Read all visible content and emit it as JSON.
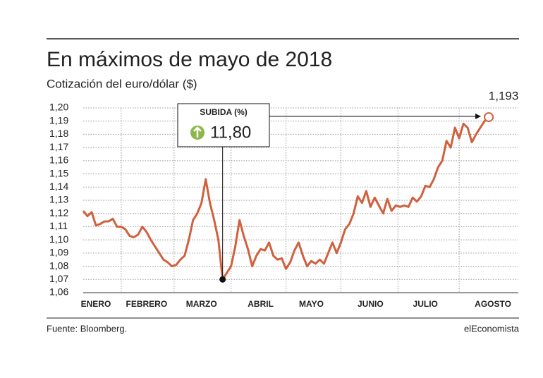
{
  "chart_data": {
    "type": "line",
    "title": "En máximos de mayo de 2018",
    "subtitle": "Cotización del euro/dólar ($)",
    "source": "Fuente: Bloomberg.",
    "brand": "elEconomista",
    "annotation": {
      "title": "SUBIDA (%)",
      "label": "11,80",
      "index": 33
    },
    "end_label": "1,193",
    "xlim": [
      0,
      103
    ],
    "xticks": [
      {
        "value": 3,
        "label": "ENERO"
      },
      {
        "value": 15,
        "label": "FEBRERO"
      },
      {
        "value": 28,
        "label": "MARZO"
      },
      {
        "value": 42,
        "label": "ABRIL"
      },
      {
        "value": 54,
        "label": "MAYO"
      },
      {
        "value": 68,
        "label": "JUNIO"
      },
      {
        "value": 81,
        "label": "JULIO"
      },
      {
        "value": 97,
        "label": "AGOSTO"
      }
    ],
    "ylim": [
      1.06,
      1.2
    ],
    "yticks": [
      {
        "value": 1.06,
        "label": "1,06"
      },
      {
        "value": 1.07,
        "label": "1,07"
      },
      {
        "value": 1.08,
        "label": "1,08"
      },
      {
        "value": 1.09,
        "label": "1,09"
      },
      {
        "value": 1.1,
        "label": "1,10"
      },
      {
        "value": 1.11,
        "label": "1,11"
      },
      {
        "value": 1.12,
        "label": "1,12"
      },
      {
        "value": 1.13,
        "label": "1,13"
      },
      {
        "value": 1.14,
        "label": "1,14"
      },
      {
        "value": 1.15,
        "label": "1,15"
      },
      {
        "value": 1.16,
        "label": "1,16"
      },
      {
        "value": 1.17,
        "label": "1,17"
      },
      {
        "value": 1.18,
        "label": "1,18"
      },
      {
        "value": 1.19,
        "label": "1,19"
      },
      {
        "value": 1.2,
        "label": "1,20"
      }
    ],
    "grid": true,
    "series": [
      {
        "name": "EUR/USD",
        "color": "#d0603e",
        "values": [
          1.122,
          1.118,
          1.121,
          1.111,
          1.112,
          1.114,
          1.114,
          1.116,
          1.11,
          1.11,
          1.108,
          1.103,
          1.102,
          1.104,
          1.11,
          1.106,
          1.1,
          1.095,
          1.09,
          1.085,
          1.083,
          1.08,
          1.081,
          1.085,
          1.088,
          1.1,
          1.115,
          1.12,
          1.128,
          1.146,
          1.128,
          1.115,
          1.1,
          1.07,
          1.075,
          1.08,
          1.095,
          1.115,
          1.103,
          1.093,
          1.08,
          1.088,
          1.093,
          1.092,
          1.098,
          1.088,
          1.085,
          1.086,
          1.078,
          1.083,
          1.092,
          1.098,
          1.088,
          1.08,
          1.084,
          1.082,
          1.085,
          1.082,
          1.09,
          1.098,
          1.09,
          1.098,
          1.108,
          1.112,
          1.12,
          1.133,
          1.128,
          1.137,
          1.125,
          1.132,
          1.126,
          1.12,
          1.131,
          1.122,
          1.126,
          1.125,
          1.126,
          1.125,
          1.132,
          1.129,
          1.133,
          1.141,
          1.14,
          1.146,
          1.155,
          1.16,
          1.175,
          1.17,
          1.185,
          1.177,
          1.188,
          1.185,
          1.174,
          1.18,
          1.185,
          1.19,
          1.193
        ]
      }
    ]
  }
}
